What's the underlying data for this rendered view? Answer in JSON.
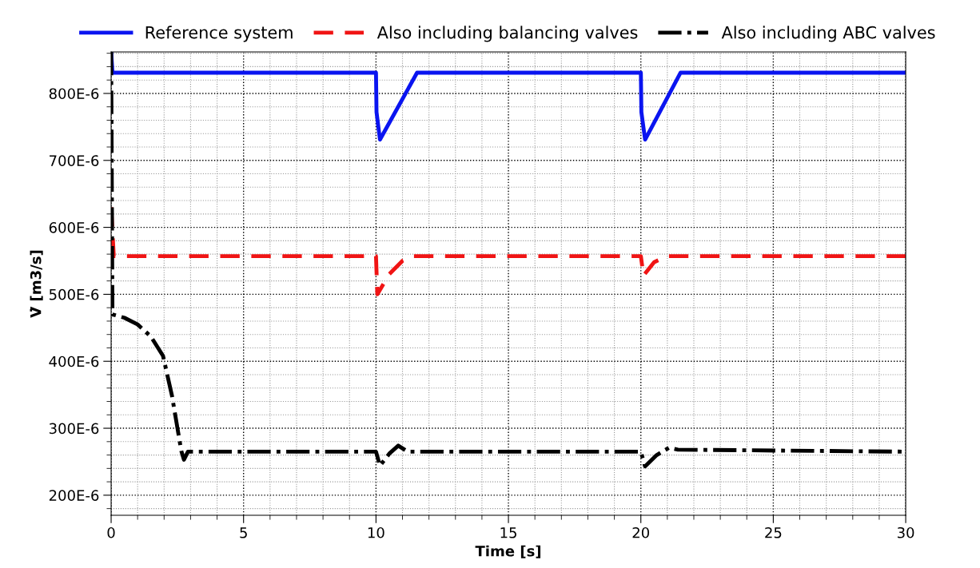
{
  "chart_data": {
    "type": "line",
    "xlabel": "Time [s]",
    "ylabel": "V̇ [m3/s]",
    "xlim": [
      0,
      30
    ],
    "xticks": [
      0,
      5,
      10,
      15,
      20,
      25,
      30
    ],
    "ylim": [
      0.00017,
      0.000862
    ],
    "yticks": [
      {
        "value": 0.0002,
        "label": "200E-6"
      },
      {
        "value": 0.0003,
        "label": "300E-6"
      },
      {
        "value": 0.0004,
        "label": "400E-6"
      },
      {
        "value": 0.0005,
        "label": "500E-6"
      },
      {
        "value": 0.0006,
        "label": "600E-6"
      },
      {
        "value": 0.0007,
        "label": "700E-6"
      },
      {
        "value": 0.0008,
        "label": "800E-6"
      }
    ],
    "grid": true,
    "legend": "top",
    "marker": "none",
    "series": [
      {
        "name": "Reference system",
        "color": "#0a14f0",
        "line_style": "solid",
        "x": [
          0,
          0.05,
          10.0,
          10.02,
          10.15,
          11.55,
          20.0,
          20.02,
          20.16,
          21.5,
          30
        ],
        "values": [
          0.000862,
          0.000831,
          0.000831,
          0.000772,
          0.000731,
          0.000831,
          0.000831,
          0.000772,
          0.000731,
          0.000831,
          0.000831
        ]
      },
      {
        "name": "Also including balancing valves",
        "color": "#f01414",
        "line_style": "dashed",
        "x": [
          0,
          0.1,
          10.0,
          10.05,
          10.5,
          11.0,
          11.4,
          20.0,
          20.1,
          20.5,
          21.0,
          30
        ],
        "values": [
          0.00063,
          0.000557,
          0.000557,
          0.0005,
          0.00053,
          0.00055,
          0.000557,
          0.000557,
          0.000528,
          0.000548,
          0.000557,
          0.000557
        ]
      },
      {
        "name": "Also including ABC valves",
        "color": "#000000",
        "line_style": "dashdot",
        "x": [
          0,
          0.05,
          0.5,
          1.0,
          1.5,
          1.96,
          2.3,
          2.65,
          2.75,
          2.9,
          10.0,
          10.15,
          10.5,
          10.84,
          11.2,
          20.0,
          20.16,
          20.6,
          21.07,
          21.4,
          30
        ],
        "values": [
          0.000862,
          0.00047,
          0.000465,
          0.000455,
          0.000437,
          0.000408,
          0.000348,
          0.000266,
          0.000253,
          0.000265,
          0.000265,
          0.000244,
          0.000262,
          0.000274,
          0.000265,
          0.000265,
          0.000243,
          0.00026,
          0.000271,
          0.000268,
          0.000265
        ]
      }
    ]
  }
}
